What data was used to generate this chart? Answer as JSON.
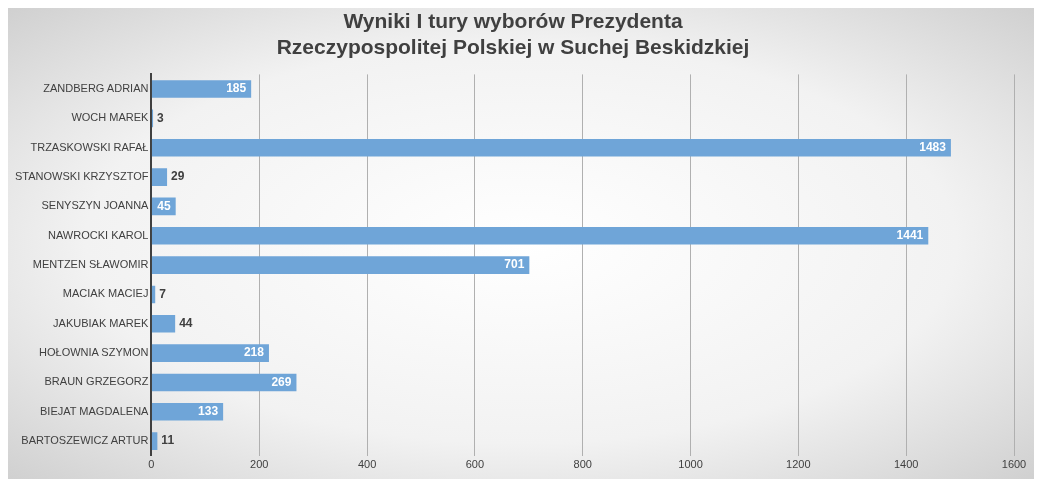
{
  "chart_data": {
    "type": "bar",
    "orientation": "horizontal",
    "title": "Wyniki I tury wyborów Prezydenta\nRzeczypospolitej Polskiej w Suchej Beskidzkiej",
    "categories": [
      "ZANDBERG ADRIAN",
      "WOCH MAREK",
      "TRZASKOWSKI RAFAŁ",
      "STANOWSKI KRZYSZTOF",
      "SENYSZYN JOANNA",
      "NAWROCKI KAROL",
      "MENTZEN SŁAWOMIR",
      "MACIAK MACIEJ",
      "JAKUBIAK MAREK",
      "HOŁOWNIA SZYMON",
      "BRAUN GRZEGORZ",
      "BIEJAT MAGDALENA",
      "BARTOSZEWICZ ARTUR"
    ],
    "values": [
      185,
      3,
      1483,
      29,
      45,
      1441,
      701,
      7,
      44,
      218,
      269,
      133,
      11
    ],
    "color": "#6fa5d8",
    "xlim": [
      0,
      1600
    ],
    "xticks": [
      0,
      200,
      400,
      600,
      800,
      1000,
      1200,
      1400,
      1600
    ],
    "grid": "x",
    "data_labels": true
  }
}
